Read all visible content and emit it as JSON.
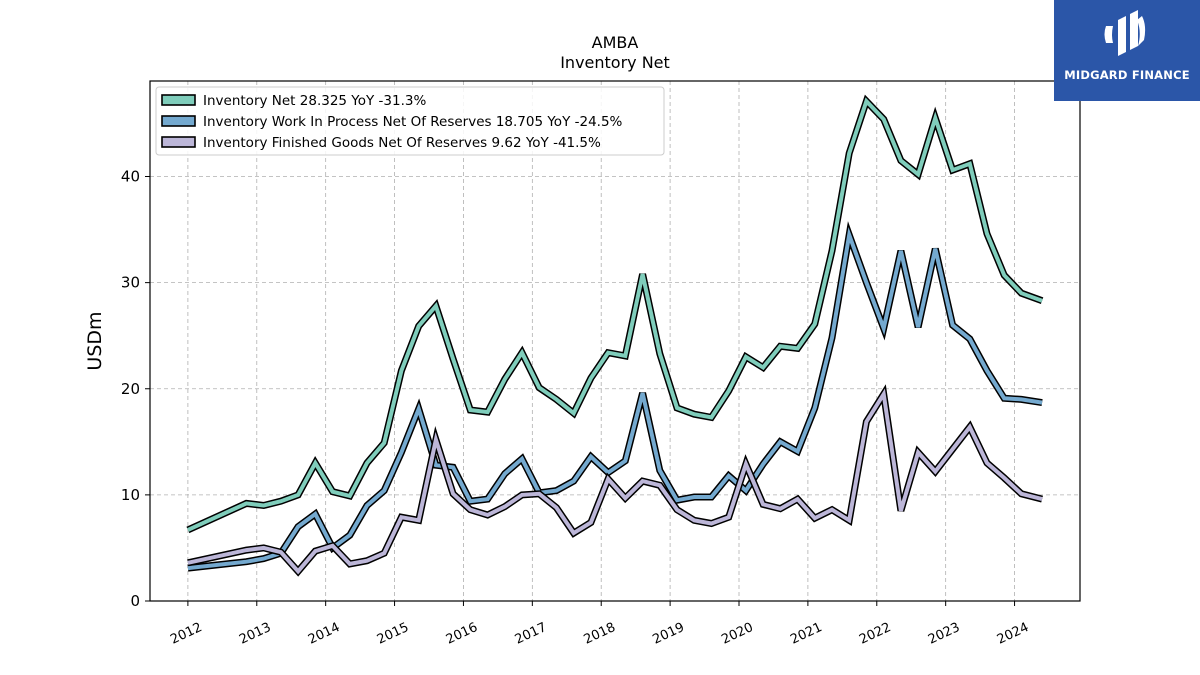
{
  "logo": {
    "text": "MIDGARD FINANCE",
    "background": "#2b56a8",
    "icon": "midgard-logo-icon"
  },
  "chart_data": {
    "type": "line",
    "title": "AMBA",
    "subtitle": "Inventory Net",
    "ylabel": "USDm",
    "xlabel": "",
    "ylim": [
      0,
      49
    ],
    "xlim": [
      2011.45,
      2024.95
    ],
    "yticks": [
      0,
      10,
      20,
      30,
      40
    ],
    "xticks": [
      "2012",
      "2013",
      "2014",
      "2015",
      "2016",
      "2017",
      "2018",
      "2019",
      "2020",
      "2021",
      "2022",
      "2023",
      "2024"
    ],
    "grid": true,
    "legend_position": "top-left",
    "x": [
      2012.0,
      2012.85,
      2013.1,
      2013.35,
      2013.6,
      2013.85,
      2014.1,
      2014.35,
      2014.6,
      2014.85,
      2015.1,
      2015.35,
      2015.6,
      2015.85,
      2016.1,
      2016.35,
      2016.6,
      2016.85,
      2017.1,
      2017.35,
      2017.6,
      2017.85,
      2018.1,
      2018.35,
      2018.6,
      2018.85,
      2019.1,
      2019.35,
      2019.6,
      2019.85,
      2020.1,
      2020.35,
      2020.6,
      2020.85,
      2021.1,
      2021.35,
      2021.6,
      2021.85,
      2022.1,
      2022.35,
      2022.6,
      2022.85,
      2023.1,
      2023.35,
      2023.6,
      2023.85,
      2024.1,
      2024.4
    ],
    "series": [
      {
        "name": "Inventory Net  28.325 YoY -31.3%",
        "color": "#7fcdbb",
        "values": [
          6.7,
          9.2,
          9.0,
          9.4,
          10.0,
          13.0,
          10.3,
          9.9,
          13.0,
          14.9,
          21.7,
          25.9,
          27.8,
          22.8,
          18.0,
          17.8,
          20.9,
          23.4,
          20.1,
          19.0,
          17.7,
          21.0,
          23.4,
          23.1,
          30.8,
          23.3,
          18.2,
          17.6,
          17.3,
          19.8,
          23.0,
          22.0,
          24.0,
          23.8,
          26.1,
          33.0,
          42.2,
          47.1,
          45.4,
          41.5,
          40.2,
          45.5,
          40.6,
          41.2,
          34.6,
          30.7,
          29.0,
          28.3
        ]
      },
      {
        "name": "Inventory Work In Process Net Of Reserves  18.705 YoY -24.5%",
        "color": "#74a9cf",
        "values": [
          3.1,
          3.7,
          4.0,
          4.5,
          7.0,
          8.2,
          5.0,
          6.2,
          9.0,
          10.4,
          14.0,
          18.1,
          12.8,
          12.6,
          9.4,
          9.6,
          12.0,
          13.4,
          10.2,
          10.4,
          11.3,
          13.6,
          12.1,
          13.2,
          19.6,
          12.3,
          9.5,
          9.8,
          9.8,
          11.8,
          10.4,
          12.9,
          15.0,
          14.1,
          18.2,
          24.8,
          34.5,
          30.0,
          25.7,
          33.0,
          25.8,
          33.2,
          26.0,
          24.7,
          21.7,
          19.1,
          19.0,
          18.7
        ]
      },
      {
        "name": "Inventory Finished Goods Net Of Reserves  9.62 YoY -41.5%",
        "color": "#bcb6d8",
        "values": [
          3.6,
          4.8,
          5.0,
          4.6,
          2.8,
          4.7,
          5.2,
          3.5,
          3.8,
          4.5,
          7.9,
          7.6,
          15.2,
          10.1,
          8.6,
          8.1,
          8.9,
          10.0,
          10.1,
          8.8,
          6.4,
          7.4,
          11.5,
          9.7,
          11.3,
          10.9,
          8.6,
          7.6,
          7.3,
          7.9,
          12.9,
          9.1,
          8.7,
          9.6,
          7.8,
          8.6,
          7.6,
          16.9,
          19.5,
          8.5,
          14.0,
          12.2,
          14.3,
          16.4,
          13.0,
          11.6,
          10.1,
          9.6
        ]
      }
    ]
  }
}
